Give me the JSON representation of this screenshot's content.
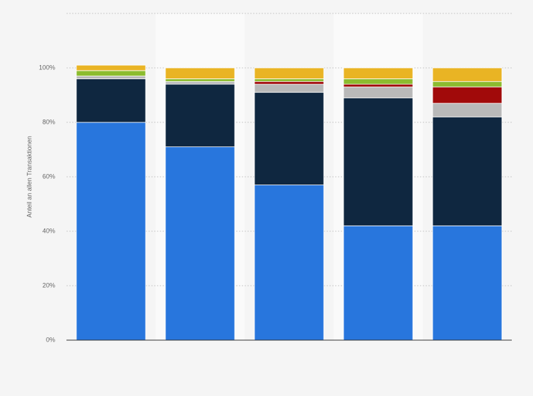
{
  "chart_data": {
    "type": "stacked-bar",
    "y_label": "Anteil an allen Transaktionen",
    "categories": [
      null,
      null,
      null,
      null,
      null
    ],
    "series": [
      {
        "color": "#2876dd",
        "values": [
          80,
          71,
          57,
          42,
          42
        ]
      },
      {
        "color": "#0f2740",
        "values": [
          16,
          23,
          34,
          47,
          40
        ]
      },
      {
        "color": "#b9b9b9",
        "values": [
          1,
          1,
          3,
          4,
          5
        ]
      },
      {
        "color": "#a10a0a",
        "values": [
          0,
          0,
          1,
          1,
          6
        ]
      },
      {
        "color": "#8cbc2f",
        "values": [
          2,
          1,
          1,
          2,
          2
        ]
      },
      {
        "color": "#e9b424",
        "values": [
          2,
          4,
          4,
          4,
          5
        ]
      }
    ],
    "ylim": [
      0,
      120
    ],
    "yticks": [
      {
        "value": 0,
        "label": "0%"
      },
      {
        "value": 20,
        "label": "20%"
      },
      {
        "value": 40,
        "label": "40%"
      },
      {
        "value": 60,
        "label": "60%"
      },
      {
        "value": 80,
        "label": "80%"
      },
      {
        "value": 100,
        "label": "100%"
      }
    ],
    "grid": true
  }
}
